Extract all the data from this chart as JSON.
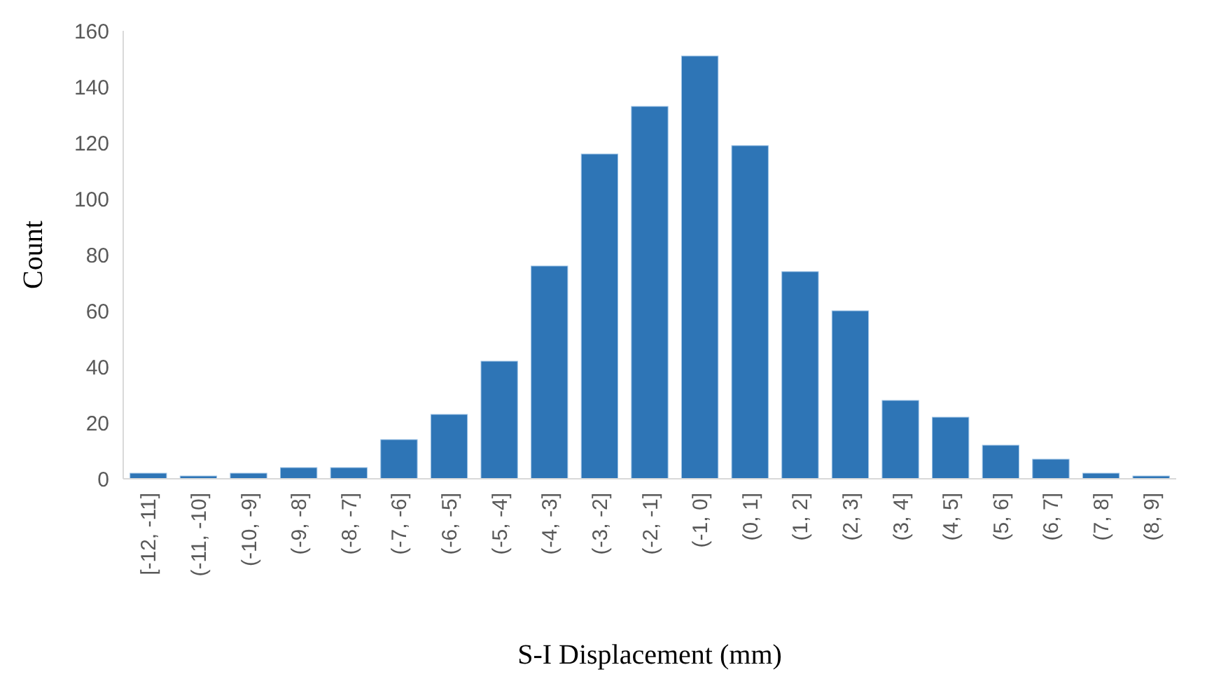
{
  "chart_data": {
    "type": "bar",
    "xlabel": "S-I Displacement (mm)",
    "ylabel": "Count",
    "categories": [
      "[-12, -11]",
      "(-11, -10]",
      "(-10, -9]",
      "(-9, -8]",
      "(-8, -7]",
      "(-7, -6]",
      "(-6, -5]",
      "(-5, -4]",
      "(-4, -3]",
      "(-3, -2]",
      "(-2, -1]",
      "(-1, 0]",
      "(0, 1]",
      "(1, 2]",
      "(2, 3]",
      "(3, 4]",
      "(4, 5]",
      "(5, 6]",
      "(6, 7]",
      "(7, 8]",
      "(8, 9]"
    ],
    "values": [
      2,
      1,
      2,
      4,
      4,
      14,
      23,
      42,
      76,
      116,
      133,
      151,
      119,
      74,
      60,
      28,
      22,
      12,
      7,
      2,
      1
    ],
    "color": "#2e75b6",
    "ylim": [
      0,
      160
    ],
    "yticks": [
      0,
      20,
      40,
      60,
      80,
      100,
      120,
      140,
      160
    ],
    "grid": false
  }
}
